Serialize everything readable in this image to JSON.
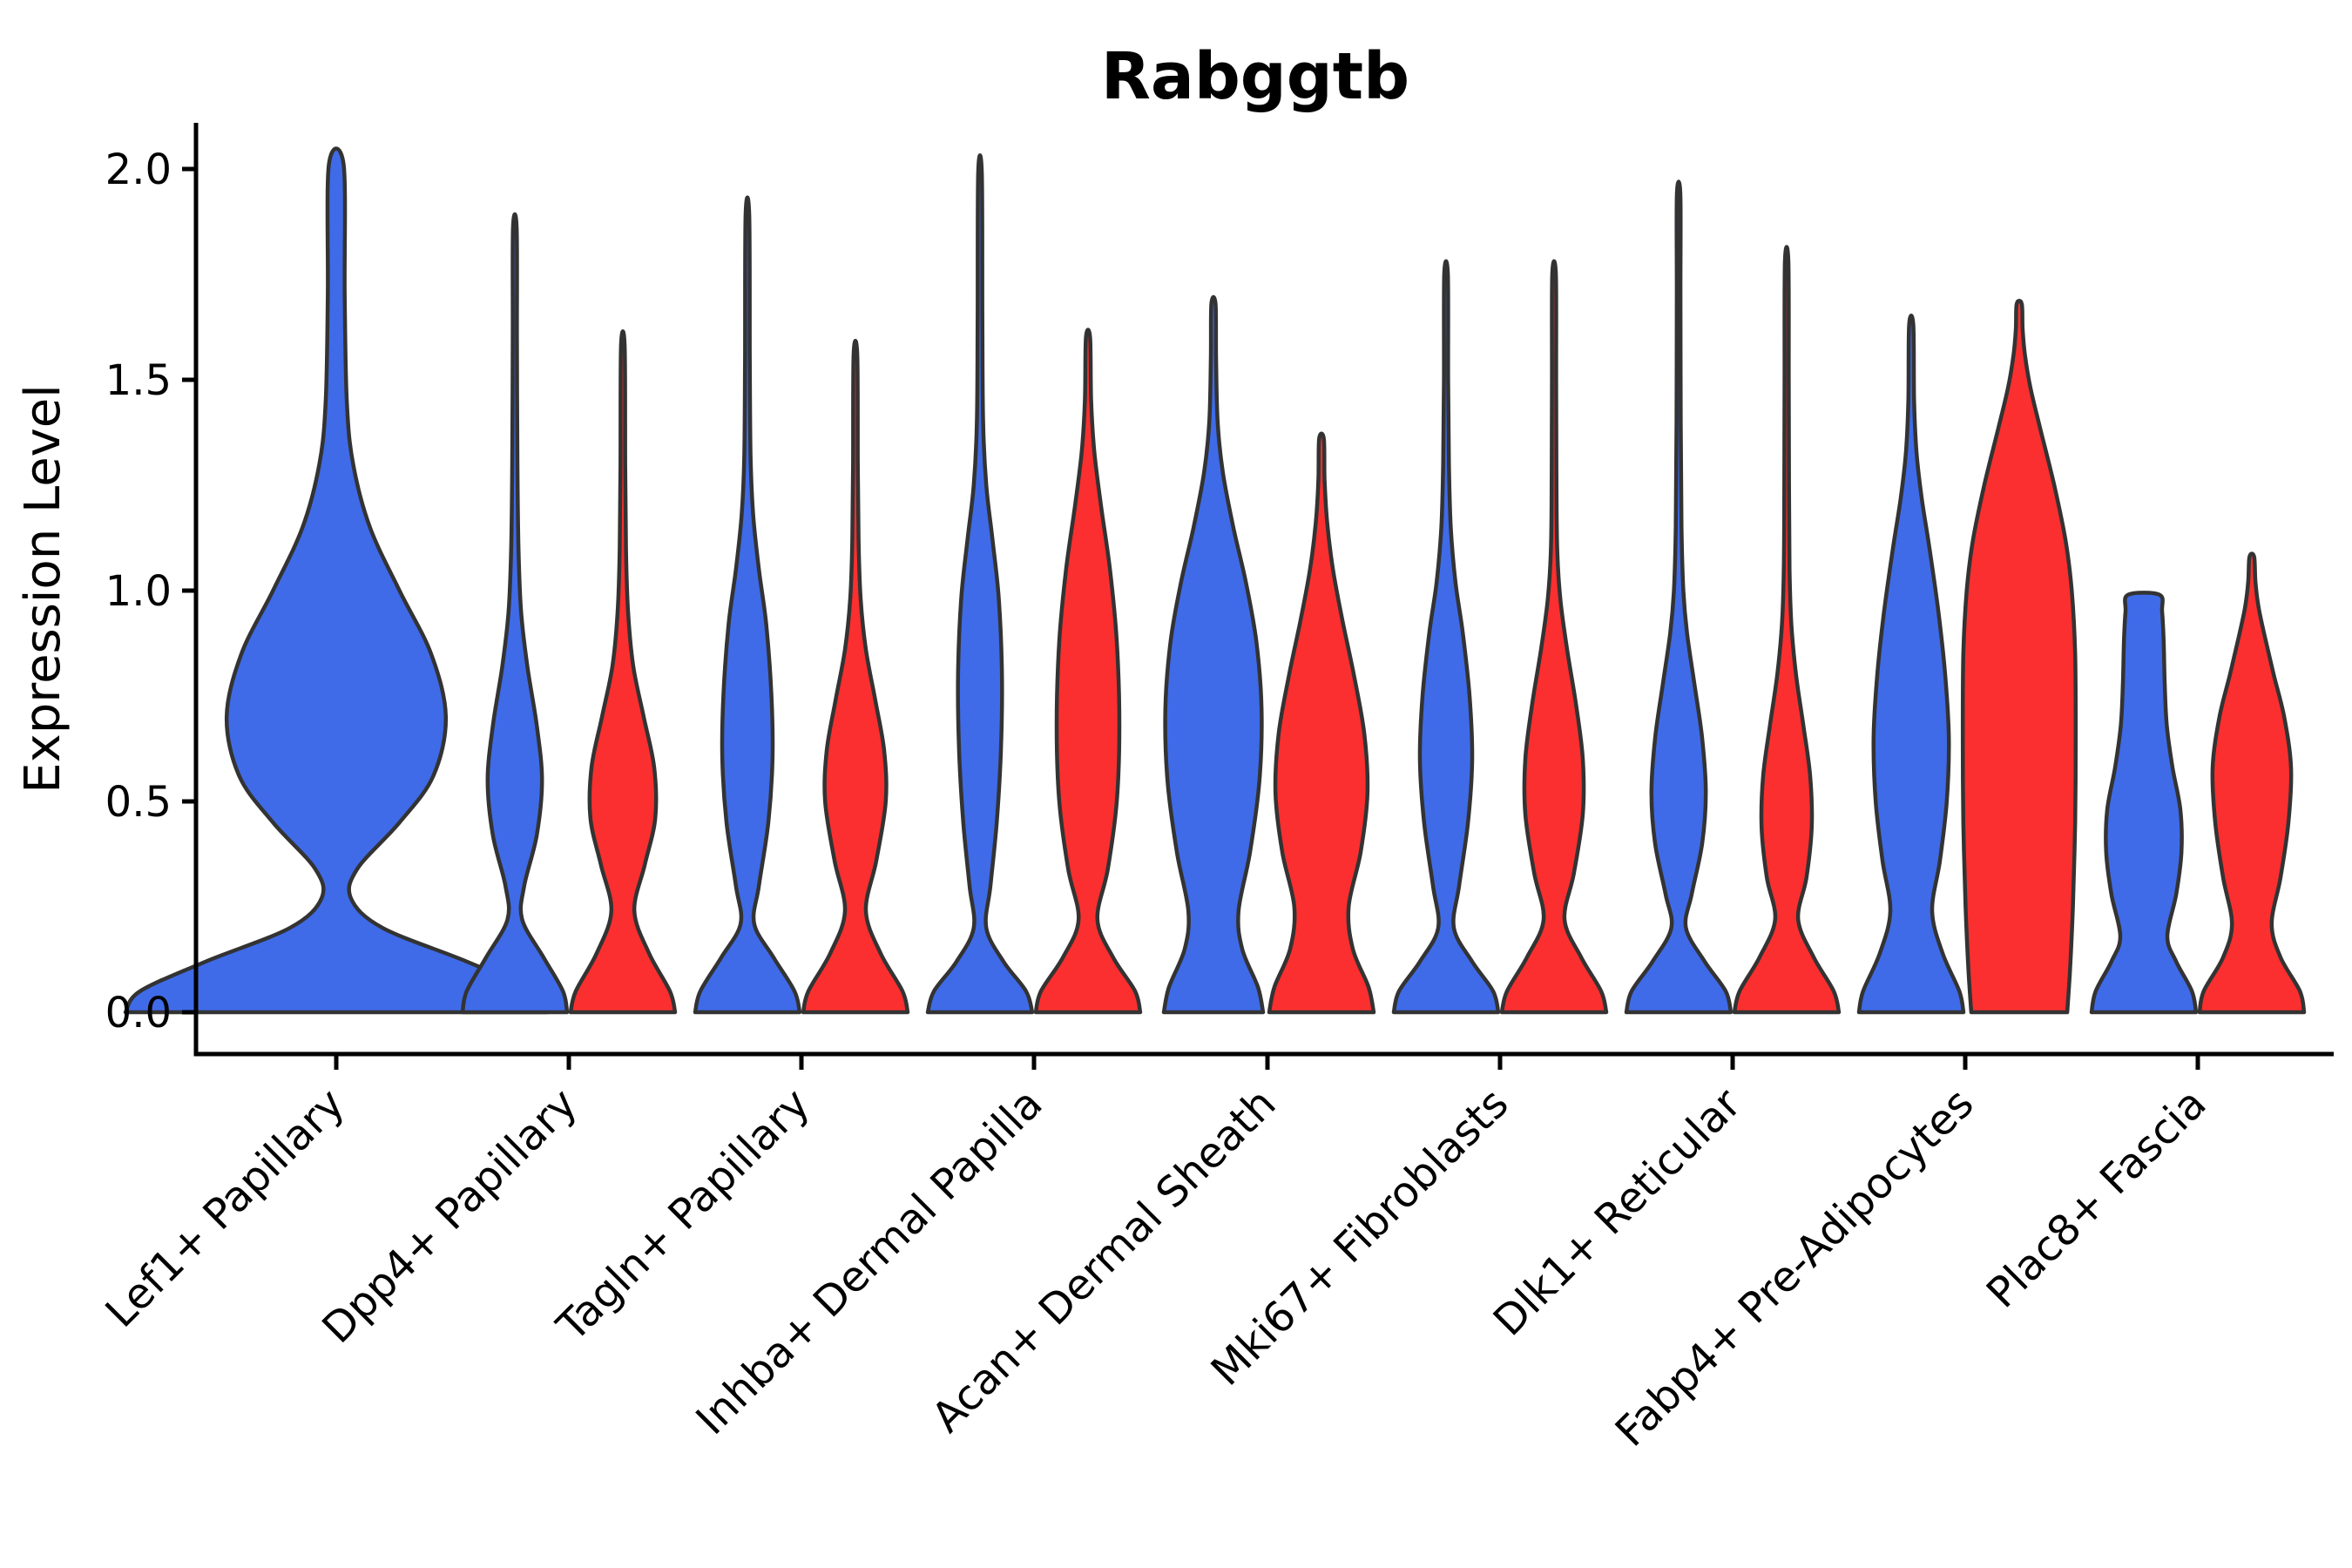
{
  "title": "Rabggtb",
  "y_axis": {
    "label": "Expression Level",
    "tick_labels": [
      "0.0",
      "0.5",
      "1.0",
      "1.5",
      "2.0"
    ],
    "tick_values": [
      0.0,
      0.5,
      1.0,
      1.5,
      2.0
    ]
  },
  "x_axis": {
    "categories": [
      "Lef1+ Papillary",
      "Dpp4+ Papillary",
      "Tagln+ Papillary",
      "Inhba+ Dermal Papilla",
      "Acan+ Dermal Sheath",
      "Mki67+ Fibroblasts",
      "Dlk1+ Reticular",
      "Fabp4+ Pre-Adipocytes",
      "Plac8+ Fascia"
    ]
  },
  "colors": {
    "blue": "#3F6BE8",
    "red": "#FB2F2F",
    "outline": "#333333",
    "axis": "#000000"
  },
  "chart_data": {
    "type": "violin",
    "title": "Rabggtb",
    "ylabel": "Expression Level",
    "ylim": [
      -0.09,
      2.11
    ],
    "yticks": [
      0.0,
      0.5,
      1.0,
      1.5,
      2.0
    ],
    "grid": false,
    "legend": "none",
    "categories": [
      "Lef1+ Papillary",
      "Dpp4+ Papillary",
      "Tagln+ Papillary",
      "Inhba+ Dermal Papilla",
      "Acan+ Dermal Sheath",
      "Mki67+ Fibroblasts",
      "Dlk1+ Reticular",
      "Fabp4+ Pre-Adipocytes",
      "Plac8+ Fascia"
    ],
    "violins": [
      {
        "category": 0,
        "color": "blue",
        "position": "center",
        "width": 2.0,
        "max": 2.01,
        "profile": [
          [
            0,
            1.0
          ],
          [
            0.05,
            0.93
          ],
          [
            0.12,
            0.62
          ],
          [
            0.2,
            0.22
          ],
          [
            0.27,
            0.07
          ],
          [
            0.34,
            0.1
          ],
          [
            0.45,
            0.3
          ],
          [
            0.56,
            0.46
          ],
          [
            0.7,
            0.52
          ],
          [
            0.85,
            0.45
          ],
          [
            1.0,
            0.3
          ],
          [
            1.15,
            0.16
          ],
          [
            1.3,
            0.08
          ],
          [
            1.45,
            0.05
          ],
          [
            1.7,
            0.04
          ],
          [
            2.01,
            0.035
          ]
        ]
      },
      {
        "category": 1,
        "color": "blue",
        "position": "left",
        "width": 1.0,
        "max": 1.86,
        "profile": [
          [
            0,
            1.0
          ],
          [
            0.05,
            0.92
          ],
          [
            0.13,
            0.55
          ],
          [
            0.22,
            0.14
          ],
          [
            0.3,
            0.18
          ],
          [
            0.42,
            0.42
          ],
          [
            0.55,
            0.52
          ],
          [
            0.68,
            0.42
          ],
          [
            0.82,
            0.24
          ],
          [
            0.95,
            0.12
          ],
          [
            1.1,
            0.07
          ],
          [
            1.3,
            0.05
          ],
          [
            1.6,
            0.04
          ],
          [
            1.86,
            0.035
          ]
        ]
      },
      {
        "category": 1,
        "color": "red",
        "position": "right",
        "width": 1.0,
        "max": 1.58,
        "profile": [
          [
            0,
            1.0
          ],
          [
            0.05,
            0.9
          ],
          [
            0.14,
            0.5
          ],
          [
            0.24,
            0.22
          ],
          [
            0.35,
            0.42
          ],
          [
            0.46,
            0.62
          ],
          [
            0.58,
            0.6
          ],
          [
            0.7,
            0.4
          ],
          [
            0.82,
            0.2
          ],
          [
            0.95,
            0.1
          ],
          [
            1.1,
            0.06
          ],
          [
            1.3,
            0.045
          ],
          [
            1.58,
            0.035
          ]
        ]
      },
      {
        "category": 2,
        "color": "blue",
        "position": "left",
        "width": 1.0,
        "max": 1.89,
        "profile": [
          [
            0,
            1.0
          ],
          [
            0.05,
            0.9
          ],
          [
            0.13,
            0.5
          ],
          [
            0.21,
            0.13
          ],
          [
            0.3,
            0.22
          ],
          [
            0.45,
            0.4
          ],
          [
            0.6,
            0.48
          ],
          [
            0.75,
            0.46
          ],
          [
            0.92,
            0.36
          ],
          [
            1.05,
            0.22
          ],
          [
            1.18,
            0.11
          ],
          [
            1.32,
            0.06
          ],
          [
            1.55,
            0.045
          ],
          [
            1.89,
            0.035
          ]
        ]
      },
      {
        "category": 2,
        "color": "red",
        "position": "right",
        "width": 1.0,
        "max": 1.56,
        "profile": [
          [
            0,
            1.0
          ],
          [
            0.05,
            0.9
          ],
          [
            0.14,
            0.48
          ],
          [
            0.24,
            0.2
          ],
          [
            0.36,
            0.4
          ],
          [
            0.5,
            0.58
          ],
          [
            0.62,
            0.55
          ],
          [
            0.74,
            0.38
          ],
          [
            0.86,
            0.2
          ],
          [
            0.98,
            0.1
          ],
          [
            1.12,
            0.06
          ],
          [
            1.3,
            0.045
          ],
          [
            1.56,
            0.035
          ]
        ]
      },
      {
        "category": 3,
        "color": "blue",
        "position": "left",
        "width": 1.0,
        "max": 1.99,
        "profile": [
          [
            0,
            1.0
          ],
          [
            0.05,
            0.88
          ],
          [
            0.12,
            0.45
          ],
          [
            0.2,
            0.12
          ],
          [
            0.3,
            0.2
          ],
          [
            0.45,
            0.32
          ],
          [
            0.62,
            0.4
          ],
          [
            0.8,
            0.42
          ],
          [
            0.98,
            0.36
          ],
          [
            1.12,
            0.24
          ],
          [
            1.25,
            0.12
          ],
          [
            1.4,
            0.06
          ],
          [
            1.65,
            0.045
          ],
          [
            1.99,
            0.035
          ]
        ]
      },
      {
        "category": 3,
        "color": "red",
        "position": "right",
        "width": 1.0,
        "max": 1.6,
        "profile": [
          [
            0,
            1.0
          ],
          [
            0.05,
            0.9
          ],
          [
            0.13,
            0.48
          ],
          [
            0.22,
            0.18
          ],
          [
            0.34,
            0.38
          ],
          [
            0.5,
            0.55
          ],
          [
            0.68,
            0.6
          ],
          [
            0.88,
            0.55
          ],
          [
            1.05,
            0.42
          ],
          [
            1.2,
            0.25
          ],
          [
            1.33,
            0.12
          ],
          [
            1.45,
            0.06
          ],
          [
            1.6,
            0.04
          ]
        ]
      },
      {
        "category": 4,
        "color": "blue",
        "position": "left",
        "width": 1.0,
        "max": 1.68,
        "profile": [
          [
            0,
            0.95
          ],
          [
            0.06,
            0.85
          ],
          [
            0.15,
            0.55
          ],
          [
            0.24,
            0.48
          ],
          [
            0.38,
            0.7
          ],
          [
            0.55,
            0.88
          ],
          [
            0.72,
            0.92
          ],
          [
            0.88,
            0.82
          ],
          [
            1.02,
            0.62
          ],
          [
            1.15,
            0.38
          ],
          [
            1.28,
            0.18
          ],
          [
            1.4,
            0.08
          ],
          [
            1.55,
            0.05
          ],
          [
            1.68,
            0.04
          ]
        ]
      },
      {
        "category": 4,
        "color": "red",
        "position": "right",
        "width": 1.0,
        "max": 1.36,
        "profile": [
          [
            0,
            1.0
          ],
          [
            0.06,
            0.9
          ],
          [
            0.15,
            0.6
          ],
          [
            0.25,
            0.52
          ],
          [
            0.38,
            0.75
          ],
          [
            0.52,
            0.88
          ],
          [
            0.66,
            0.82
          ],
          [
            0.8,
            0.62
          ],
          [
            0.93,
            0.4
          ],
          [
            1.05,
            0.22
          ],
          [
            1.16,
            0.11
          ],
          [
            1.26,
            0.06
          ],
          [
            1.36,
            0.045
          ]
        ]
      },
      {
        "category": 5,
        "color": "blue",
        "position": "left",
        "width": 1.0,
        "max": 1.75,
        "profile": [
          [
            0,
            1.0
          ],
          [
            0.05,
            0.9
          ],
          [
            0.12,
            0.5
          ],
          [
            0.2,
            0.15
          ],
          [
            0.3,
            0.25
          ],
          [
            0.45,
            0.42
          ],
          [
            0.6,
            0.5
          ],
          [
            0.75,
            0.45
          ],
          [
            0.9,
            0.32
          ],
          [
            1.02,
            0.18
          ],
          [
            1.15,
            0.09
          ],
          [
            1.3,
            0.055
          ],
          [
            1.5,
            0.04
          ],
          [
            1.75,
            0.035
          ]
        ]
      },
      {
        "category": 5,
        "color": "red",
        "position": "right",
        "width": 1.0,
        "max": 1.75,
        "profile": [
          [
            0,
            1.0
          ],
          [
            0.05,
            0.9
          ],
          [
            0.13,
            0.52
          ],
          [
            0.22,
            0.2
          ],
          [
            0.33,
            0.38
          ],
          [
            0.47,
            0.55
          ],
          [
            0.6,
            0.55
          ],
          [
            0.73,
            0.42
          ],
          [
            0.86,
            0.25
          ],
          [
            0.98,
            0.12
          ],
          [
            1.1,
            0.06
          ],
          [
            1.28,
            0.045
          ],
          [
            1.5,
            0.04
          ],
          [
            1.75,
            0.035
          ]
        ]
      },
      {
        "category": 6,
        "color": "blue",
        "position": "left",
        "width": 1.0,
        "max": 1.94,
        "profile": [
          [
            0,
            1.0
          ],
          [
            0.05,
            0.9
          ],
          [
            0.12,
            0.5
          ],
          [
            0.2,
            0.14
          ],
          [
            0.28,
            0.25
          ],
          [
            0.4,
            0.45
          ],
          [
            0.52,
            0.52
          ],
          [
            0.65,
            0.45
          ],
          [
            0.78,
            0.3
          ],
          [
            0.9,
            0.16
          ],
          [
            1.0,
            0.09
          ],
          [
            1.15,
            0.055
          ],
          [
            1.4,
            0.04
          ],
          [
            1.7,
            0.035
          ],
          [
            1.94,
            0.033
          ]
        ]
      },
      {
        "category": 6,
        "color": "red",
        "position": "right",
        "width": 1.0,
        "max": 1.78,
        "profile": [
          [
            0,
            1.0
          ],
          [
            0.05,
            0.9
          ],
          [
            0.13,
            0.52
          ],
          [
            0.22,
            0.22
          ],
          [
            0.32,
            0.38
          ],
          [
            0.44,
            0.48
          ],
          [
            0.56,
            0.45
          ],
          [
            0.68,
            0.32
          ],
          [
            0.8,
            0.18
          ],
          [
            0.92,
            0.09
          ],
          [
            1.05,
            0.055
          ],
          [
            1.25,
            0.045
          ],
          [
            1.5,
            0.04
          ],
          [
            1.78,
            0.033
          ]
        ]
      },
      {
        "category": 7,
        "color": "blue",
        "position": "left",
        "width": 1.0,
        "max": 1.63,
        "profile": [
          [
            0,
            1.0
          ],
          [
            0.05,
            0.92
          ],
          [
            0.14,
            0.6
          ],
          [
            0.24,
            0.4
          ],
          [
            0.36,
            0.55
          ],
          [
            0.5,
            0.68
          ],
          [
            0.65,
            0.72
          ],
          [
            0.8,
            0.65
          ],
          [
            0.95,
            0.52
          ],
          [
            1.1,
            0.35
          ],
          [
            1.22,
            0.2
          ],
          [
            1.33,
            0.1
          ],
          [
            1.45,
            0.055
          ],
          [
            1.63,
            0.04
          ]
        ]
      },
      {
        "category": 7,
        "color": "red",
        "position": "right",
        "width": 1.08,
        "max": 1.68,
        "profile": [
          [
            0,
            0.85
          ],
          [
            0.1,
            0.9
          ],
          [
            0.25,
            0.95
          ],
          [
            0.45,
            0.99
          ],
          [
            0.65,
            1.0
          ],
          [
            0.85,
            0.99
          ],
          [
            1.0,
            0.93
          ],
          [
            1.12,
            0.82
          ],
          [
            1.25,
            0.62
          ],
          [
            1.38,
            0.38
          ],
          [
            1.48,
            0.2
          ],
          [
            1.56,
            0.1
          ],
          [
            1.62,
            0.06
          ],
          [
            1.68,
            0.045
          ]
        ]
      },
      {
        "category": 8,
        "color": "blue",
        "position": "left",
        "width": 1.0,
        "max": 0.99,
        "profile": [
          [
            0,
            1.0
          ],
          [
            0.05,
            0.92
          ],
          [
            0.12,
            0.62
          ],
          [
            0.18,
            0.45
          ],
          [
            0.28,
            0.62
          ],
          [
            0.38,
            0.72
          ],
          [
            0.48,
            0.7
          ],
          [
            0.58,
            0.55
          ],
          [
            0.68,
            0.44
          ],
          [
            0.78,
            0.4
          ],
          [
            0.88,
            0.38
          ],
          [
            0.95,
            0.35
          ],
          [
            0.99,
            0.3
          ]
        ]
      },
      {
        "category": 8,
        "color": "red",
        "position": "right",
        "width": 1.0,
        "max": 1.08,
        "profile": [
          [
            0,
            1.0
          ],
          [
            0.05,
            0.92
          ],
          [
            0.13,
            0.55
          ],
          [
            0.21,
            0.38
          ],
          [
            0.32,
            0.55
          ],
          [
            0.45,
            0.7
          ],
          [
            0.58,
            0.75
          ],
          [
            0.7,
            0.62
          ],
          [
            0.8,
            0.42
          ],
          [
            0.89,
            0.25
          ],
          [
            0.96,
            0.13
          ],
          [
            1.02,
            0.07
          ],
          [
            1.08,
            0.045
          ]
        ]
      }
    ]
  }
}
